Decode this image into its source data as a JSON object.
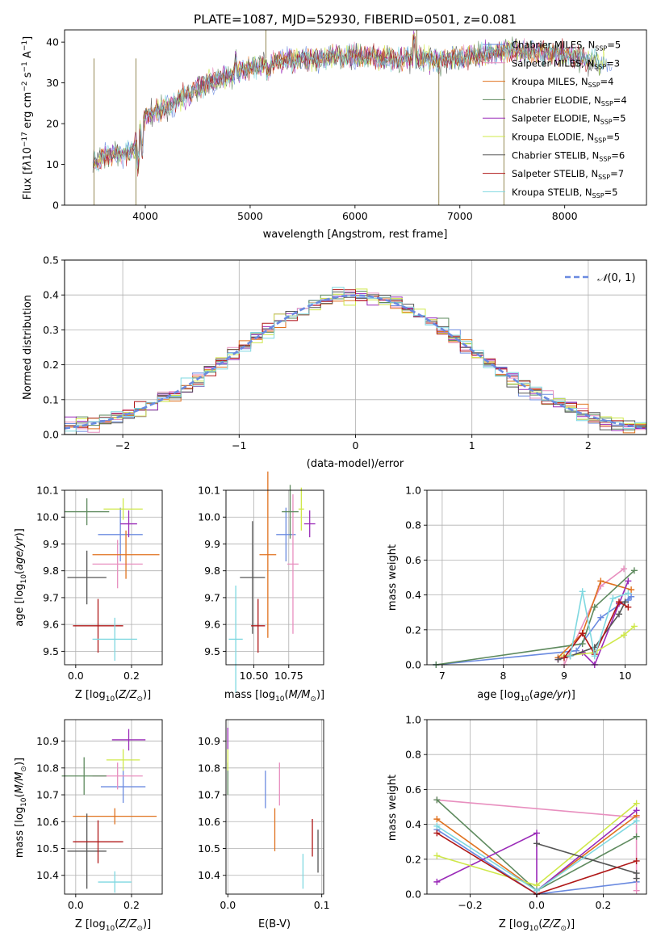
{
  "figure_title": "PLATE=1087, MJD=52930, FIBERID=0501, z=0.081",
  "colors": {
    "Chabrier MILES": "#6a8ae0",
    "Salpeter MILES": "#e88fbf",
    "Kroupa MILES": "#e0721f",
    "Chabrier ELODIE": "#5e8a5e",
    "Salpeter ELODIE": "#9a2ab8",
    "Kroupa ELODIE": "#cfe84a",
    "Chabrier STELIB": "#555555",
    "Salpeter STELIB": "#b01818",
    "Kroupa STELIB": "#7fd8e0"
  },
  "chart_data": [
    {
      "type": "line",
      "panel": "spectrum",
      "xlabel": "wavelength [Angstrom, rest frame]",
      "ylabel": "Flux [f_λ10^-17 erg cm^-2 s^-1 A^-1]",
      "xlim": [
        3230,
        8780
      ],
      "ylim": [
        0,
        43
      ],
      "xticks": [
        4000,
        5000,
        6000,
        7000,
        8000
      ],
      "yticks": [
        0,
        10,
        20,
        30,
        40
      ],
      "legend_position": "right",
      "legend": [
        {
          "name": "Chabrier MILES",
          "nssp": "5"
        },
        {
          "name": "Salpeter MILES",
          "nssp": "3"
        },
        {
          "name": "Kroupa MILES",
          "nssp": "4"
        },
        {
          "name": "Chabrier ELODIE",
          "nssp": "4"
        },
        {
          "name": "Salpeter ELODIE",
          "nssp": "5"
        },
        {
          "name": "Kroupa ELODIE",
          "nssp": "5"
        },
        {
          "name": "Chabrier STELIB",
          "nssp": "6"
        },
        {
          "name": "Salpeter STELIB",
          "nssp": "7"
        },
        {
          "name": "Kroupa STELIB",
          "nssp": "5"
        }
      ],
      "continuum": {
        "x": [
          3500,
          3600,
          3700,
          3800,
          3900,
          4000,
          4200,
          4400,
          4600,
          4800,
          5000,
          5300,
          5600,
          6000,
          6400,
          6800,
          7200,
          7500,
          8000,
          8500
        ],
        "y": [
          10,
          12,
          13,
          12.5,
          14,
          22,
          24,
          27,
          30,
          32,
          34,
          35.5,
          36,
          36.5,
          36,
          35.5,
          37,
          38,
          37,
          34
        ]
      }
    },
    {
      "type": "histogram",
      "panel": "residuals",
      "xlabel": "(data-model)/error",
      "ylabel": "Normed distribution",
      "xlim": [
        -2.5,
        2.5
      ],
      "ylim": [
        0,
        0.5
      ],
      "xticks": [
        -2,
        -1,
        0,
        1,
        2
      ],
      "yticks": [
        0.0,
        0.1,
        0.2,
        0.3,
        0.4,
        0.5
      ],
      "bin_width": 0.1,
      "reference_curve": "N(0,1)",
      "legend_position": "top-right"
    },
    {
      "type": "scatter",
      "panel": "age-vs-Z",
      "xlabel": "Z [log10(Z/Z_sun)]",
      "ylabel": "age  [log10(age/yr)]",
      "xlim": [
        -0.04,
        0.31
      ],
      "ylim": [
        9.45,
        10.1
      ],
      "xticks": [
        0.0,
        0.2
      ],
      "yticks": [
        9.5,
        9.6,
        9.7,
        9.8,
        9.9,
        10.0,
        10.1
      ],
      "points": [
        {
          "model": "Chabrier MILES",
          "x": 0.16,
          "y": 9.935,
          "xerr": 0.08,
          "yerr": 0.1
        },
        {
          "model": "Salpeter MILES",
          "x": 0.15,
          "y": 9.825,
          "xerr": 0.09,
          "yerr": 0.09
        },
        {
          "model": "Kroupa MILES",
          "x": 0.18,
          "y": 9.86,
          "xerr": 0.12,
          "yerr": 0.09
        },
        {
          "model": "Chabrier ELODIE",
          "x": 0.04,
          "y": 10.02,
          "xerr": 0.08,
          "yerr": 0.05
        },
        {
          "model": "Salpeter ELODIE",
          "x": 0.19,
          "y": 9.975,
          "xerr": 0.03,
          "yerr": 0.05
        },
        {
          "model": "Kroupa ELODIE",
          "x": 0.17,
          "y": 10.03,
          "xerr": 0.07,
          "yerr": 0.04
        },
        {
          "model": "Chabrier STELIB",
          "x": 0.04,
          "y": 9.775,
          "xerr": 0.07,
          "yerr": 0.1
        },
        {
          "model": "Salpeter STELIB",
          "x": 0.08,
          "y": 9.595,
          "xerr": 0.09,
          "yerr": 0.1
        },
        {
          "model": "Kroupa STELIB",
          "x": 0.14,
          "y": 9.545,
          "xerr": 0.08,
          "yerr": 0.08
        }
      ]
    },
    {
      "type": "scatter",
      "panel": "age-vs-mass",
      "xlabel": "mass [log10(M/M_sun)]",
      "ylabel": "",
      "xlim": [
        10.3,
        11.0
      ],
      "ylim": [
        9.45,
        10.1
      ],
      "xticks": [
        10.5,
        10.75
      ],
      "xticklabels": [
        "10.50",
        "10.75"
      ],
      "yticks": [
        9.5,
        9.6,
        9.7,
        9.8,
        9.9,
        10.0,
        10.1
      ],
      "points": [
        {
          "model": "Chabrier MILES",
          "x": 10.73,
          "y": 9.935,
          "xerr": 0.07,
          "yerr": 0.1
        },
        {
          "model": "Salpeter MILES",
          "x": 10.78,
          "y": 9.825,
          "xerr": 0.04,
          "yerr": 0.26
        },
        {
          "model": "Kroupa MILES",
          "x": 10.6,
          "y": 9.86,
          "xerr": 0.06,
          "yerr": 0.31
        },
        {
          "model": "Chabrier ELODIE",
          "x": 10.76,
          "y": 10.02,
          "xerr": 0.06,
          "yerr": 0.1
        },
        {
          "model": "Salpeter ELODIE",
          "x": 10.9,
          "y": 9.975,
          "xerr": 0.04,
          "yerr": 0.05
        },
        {
          "model": "Kroupa ELODIE",
          "x": 10.84,
          "y": 10.03,
          "xerr": 0.02,
          "yerr": 0.08
        },
        {
          "model": "Chabrier STELIB",
          "x": 10.49,
          "y": 9.775,
          "xerr": 0.09,
          "yerr": 0.21
        },
        {
          "model": "Salpeter STELIB",
          "x": 10.53,
          "y": 9.595,
          "xerr": 0.05,
          "yerr": 0.1
        },
        {
          "model": "Kroupa STELIB",
          "x": 10.37,
          "y": 9.545,
          "xerr": 0.05,
          "yerr": 0.2
        }
      ]
    },
    {
      "type": "line",
      "panel": "mass-weight-vs-age",
      "xlabel": "age  [log10(age/yr)]",
      "ylabel": "mass weight",
      "xlim": [
        6.75,
        10.35
      ],
      "ylim": [
        0,
        1
      ],
      "xticks": [
        7,
        8,
        9,
        10
      ],
      "yticks": [
        0.0,
        0.2,
        0.4,
        0.6,
        0.8,
        1.0
      ],
      "series": [
        {
          "model": "Chabrier MILES",
          "x": [
            6.9,
            9.2,
            9.6,
            10.1,
            10.05
          ],
          "y": [
            0.0,
            0.08,
            0.27,
            0.39,
            0.37
          ]
        },
        {
          "model": "Salpeter MILES",
          "x": [
            9.0,
            9.6,
            9.98
          ],
          "y": [
            0.0,
            0.45,
            0.55
          ]
        },
        {
          "model": "Kroupa MILES",
          "x": [
            8.9,
            9.3,
            9.6,
            10.1
          ],
          "y": [
            0.04,
            0.18,
            0.48,
            0.43
          ]
        },
        {
          "model": "Chabrier ELODIE",
          "x": [
            6.9,
            9.3,
            9.5,
            10.15
          ],
          "y": [
            0.0,
            0.12,
            0.33,
            0.54
          ]
        },
        {
          "model": "Salpeter ELODIE",
          "x": [
            8.9,
            9.3,
            9.5,
            9.9,
            10.05
          ],
          "y": [
            0.03,
            0.07,
            0.0,
            0.35,
            0.48
          ]
        },
        {
          "model": "Kroupa ELODIE",
          "x": [
            9.0,
            9.5,
            9.98,
            10.15
          ],
          "y": [
            0.05,
            0.07,
            0.17,
            0.22
          ]
        },
        {
          "model": "Chabrier STELIB",
          "x": [
            8.9,
            9.1,
            9.5,
            9.9,
            10.0
          ],
          "y": [
            0.03,
            0.05,
            0.1,
            0.29,
            0.36
          ]
        },
        {
          "model": "Salpeter STELIB",
          "x": [
            9.0,
            9.3,
            9.5,
            9.9,
            10.05
          ],
          "y": [
            0.04,
            0.18,
            0.06,
            0.36,
            0.33
          ]
        },
        {
          "model": "Kroupa STELIB",
          "x": [
            9.1,
            9.3,
            9.5,
            9.8,
            10.05
          ],
          "y": [
            0.05,
            0.42,
            0.05,
            0.38,
            0.41
          ]
        }
      ]
    },
    {
      "type": "scatter",
      "panel": "mass-vs-Z",
      "xlabel": "Z [log10(Z/Z_sun)]",
      "ylabel": "mass [log10(M/M_sun)]",
      "xlim": [
        -0.04,
        0.31
      ],
      "ylim": [
        10.33,
        10.98
      ],
      "xticks": [
        0.0,
        0.2
      ],
      "yticks": [
        10.4,
        10.5,
        10.6,
        10.7,
        10.8,
        10.9
      ],
      "points": [
        {
          "model": "Chabrier MILES",
          "x": 0.17,
          "y": 10.73,
          "xerr": 0.08,
          "yerr": 0.06
        },
        {
          "model": "Salpeter MILES",
          "x": 0.15,
          "y": 10.77,
          "xerr": 0.09,
          "yerr": 0.05
        },
        {
          "model": "Kroupa MILES",
          "x": 0.14,
          "y": 10.62,
          "xerr": 0.15,
          "yerr": 0.03
        },
        {
          "model": "Chabrier ELODIE",
          "x": 0.03,
          "y": 10.77,
          "xerr": 0.08,
          "yerr": 0.07
        },
        {
          "model": "Salpeter ELODIE",
          "x": 0.19,
          "y": 10.905,
          "xerr": 0.06,
          "yerr": 0.04
        },
        {
          "model": "Kroupa ELODIE",
          "x": 0.17,
          "y": 10.83,
          "xerr": 0.06,
          "yerr": 0.04
        },
        {
          "model": "Chabrier STELIB",
          "x": 0.04,
          "y": 10.49,
          "xerr": 0.07,
          "yerr": 0.14
        },
        {
          "model": "Salpeter STELIB",
          "x": 0.08,
          "y": 10.525,
          "xerr": 0.09,
          "yerr": 0.08
        },
        {
          "model": "Kroupa STELIB",
          "x": 0.14,
          "y": 10.375,
          "xerr": 0.06,
          "yerr": 0.04
        }
      ]
    },
    {
      "type": "scatter",
      "panel": "mass-vs-EBV",
      "xlabel": "E(B-V)",
      "ylabel": "",
      "xlim": [
        -0.002,
        0.102
      ],
      "ylim": [
        10.33,
        10.98
      ],
      "xticks": [
        0.0,
        0.1
      ],
      "yticks": [
        10.4,
        10.5,
        10.6,
        10.7,
        10.8,
        10.9
      ],
      "points": [
        {
          "model": "Chabrier MILES",
          "x": 0.04,
          "y": 10.72,
          "yerr": 0.07
        },
        {
          "model": "Salpeter MILES",
          "x": 0.055,
          "y": 10.74,
          "yerr": 0.08
        },
        {
          "model": "Kroupa MILES",
          "x": 0.05,
          "y": 10.57,
          "yerr": 0.08
        },
        {
          "model": "Chabrier ELODIE",
          "x": 0.0,
          "y": 10.76,
          "yerr": 0.06
        },
        {
          "model": "Salpeter ELODIE",
          "x": 0.0,
          "y": 10.91,
          "yerr": 0.04
        },
        {
          "model": "Kroupa ELODIE",
          "x": 0.0,
          "y": 10.83,
          "yerr": 0.04
        },
        {
          "model": "Chabrier STELIB",
          "x": 0.096,
          "y": 10.49,
          "yerr": 0.08
        },
        {
          "model": "Salpeter STELIB",
          "x": 0.09,
          "y": 10.54,
          "yerr": 0.07
        },
        {
          "model": "Kroupa STELIB",
          "x": 0.08,
          "y": 10.415,
          "yerr": 0.065
        }
      ]
    },
    {
      "type": "line",
      "panel": "mass-weight-vs-Z",
      "xlabel": "Z [log10(Z/Z_sun)]",
      "ylabel": "mass weight",
      "xlim": [
        -0.33,
        0.33
      ],
      "ylim": [
        0,
        1
      ],
      "xticks": [
        -0.2,
        0.0,
        0.2
      ],
      "yticks": [
        0.0,
        0.2,
        0.4,
        0.6,
        0.8,
        1.0
      ],
      "series": [
        {
          "model": "Chabrier MILES",
          "x": [
            -0.3,
            0.0,
            0.3
          ],
          "y": [
            0.37,
            0.0,
            0.07
          ]
        },
        {
          "model": "Salpeter MILES",
          "x": [
            -0.3,
            0.3,
            0.3
          ],
          "y": [
            0.54,
            0.44,
            0.02
          ]
        },
        {
          "model": "Kroupa MILES",
          "x": [
            -0.3,
            0.0,
            0.3
          ],
          "y": [
            0.43,
            0.02,
            0.45
          ]
        },
        {
          "model": "Chabrier ELODIE",
          "x": [
            -0.3,
            0.0,
            0.3
          ],
          "y": [
            0.54,
            0.02,
            0.33
          ]
        },
        {
          "model": "Salpeter ELODIE",
          "x": [
            -0.3,
            0.0,
            0.0,
            0.3
          ],
          "y": [
            0.07,
            0.35,
            0.02,
            0.48
          ]
        },
        {
          "model": "Kroupa ELODIE",
          "x": [
            -0.3,
            0.0,
            0.3
          ],
          "y": [
            0.22,
            0.05,
            0.52
          ]
        },
        {
          "model": "Chabrier STELIB",
          "x": [
            0.0,
            0.3,
            0.3
          ],
          "y": [
            0.29,
            0.12,
            0.09
          ]
        },
        {
          "model": "Salpeter STELIB",
          "x": [
            -0.3,
            0.0,
            0.3
          ],
          "y": [
            0.35,
            0.0,
            0.19
          ]
        },
        {
          "model": "Kroupa STELIB",
          "x": [
            -0.3,
            0.0,
            0.3
          ],
          "y": [
            0.39,
            0.02,
            0.42
          ]
        }
      ]
    }
  ]
}
